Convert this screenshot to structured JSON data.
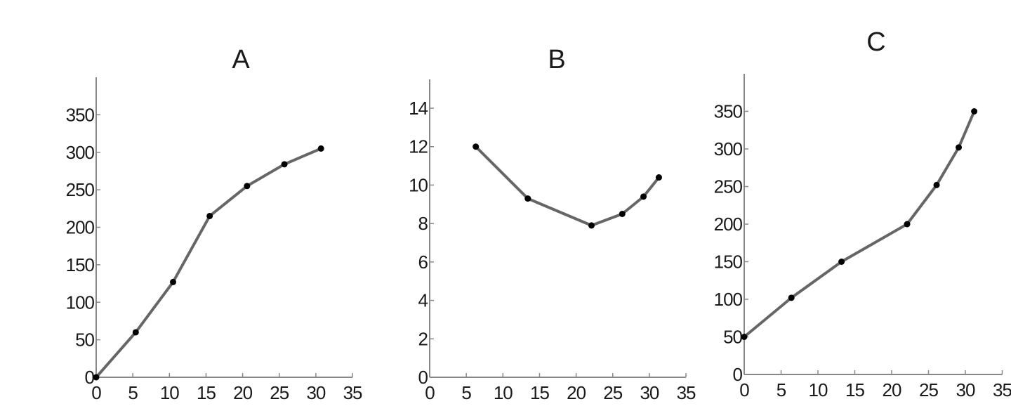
{
  "chart_data": [
    {
      "type": "line",
      "title": "A",
      "xlabel": "",
      "ylabel": "",
      "xlim": [
        0,
        35
      ],
      "ylim": [
        0,
        400
      ],
      "xticks": [
        0,
        5,
        10,
        15,
        20,
        25,
        30,
        35
      ],
      "yticks": [
        0,
        50,
        100,
        150,
        200,
        250,
        300,
        350
      ],
      "grid": false,
      "series": [
        {
          "x": [
            0,
            5.4,
            10.5,
            15.5,
            20.6,
            25.7,
            30.7
          ],
          "y": [
            0,
            60,
            127,
            215,
            255,
            284,
            305
          ]
        }
      ]
    },
    {
      "type": "line",
      "title": "B",
      "xlabel": "",
      "ylabel": "",
      "xlim": [
        0,
        35
      ],
      "ylim": [
        0,
        15.5
      ],
      "xticks": [
        0,
        5,
        10,
        15,
        20,
        25,
        30,
        35
      ],
      "yticks": [
        0,
        2,
        4,
        6,
        8,
        10,
        12,
        14
      ],
      "grid": false,
      "series": [
        {
          "x": [
            6.3,
            13.4,
            22.1,
            26.3,
            29.2,
            31.3
          ],
          "y": [
            12,
            9.3,
            7.9,
            8.5,
            9.4,
            10.4
          ]
        }
      ]
    },
    {
      "type": "line",
      "title": "C",
      "xlabel": "",
      "ylabel": "",
      "xlim": [
        0,
        35
      ],
      "ylim": [
        0,
        400
      ],
      "xticks": [
        0,
        5,
        10,
        15,
        20,
        25,
        30,
        35
      ],
      "yticks": [
        0,
        50,
        100,
        150,
        200,
        250,
        300,
        350
      ],
      "grid": false,
      "series": [
        {
          "x": [
            0,
            6.4,
            13.2,
            22.1,
            26.1,
            29.1,
            31.2
          ],
          "y": [
            50,
            102,
            150,
            200,
            252,
            302,
            350
          ]
        }
      ]
    }
  ],
  "colors": {
    "line": "#666666",
    "marker": "#000000",
    "axis": "#888888",
    "text": "#1a1a1a"
  }
}
